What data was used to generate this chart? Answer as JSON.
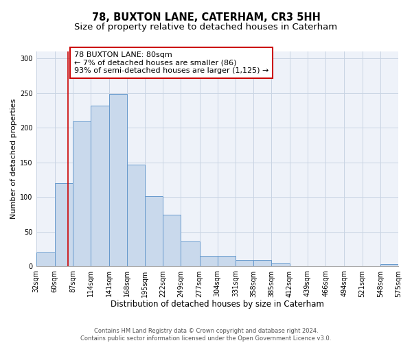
{
  "title": "78, BUXTON LANE, CATERHAM, CR3 5HH",
  "subtitle": "Size of property relative to detached houses in Caterham",
  "xlabel": "Distribution of detached houses by size in Caterham",
  "ylabel": "Number of detached properties",
  "bar_color": "#c9d9ec",
  "bar_edge_color": "#6699cc",
  "grid_color": "#c8d4e3",
  "background_color": "#eef2f9",
  "annotation_box_color": "#cc0000",
  "vline_color": "#cc0000",
  "vline_x": 80,
  "annotation_text": "78 BUXTON LANE: 80sqm\n← 7% of detached houses are smaller (86)\n93% of semi-detached houses are larger (1,125) →",
  "bin_edges": [
    32,
    60,
    87,
    114,
    141,
    168,
    195,
    222,
    249,
    277,
    304,
    331,
    358,
    385,
    412,
    439,
    466,
    494,
    521,
    548,
    575
  ],
  "bar_heights": [
    20,
    120,
    209,
    232,
    249,
    147,
    101,
    75,
    36,
    15,
    15,
    9,
    9,
    4,
    0,
    0,
    0,
    0,
    0,
    3
  ],
  "ylim": [
    0,
    310
  ],
  "yticks": [
    0,
    50,
    100,
    150,
    200,
    250,
    300
  ],
  "footer_text": "Contains HM Land Registry data © Crown copyright and database right 2024.\nContains public sector information licensed under the Open Government Licence v3.0.",
  "title_fontsize": 10.5,
  "subtitle_fontsize": 9.5,
  "xlabel_fontsize": 8.5,
  "ylabel_fontsize": 8,
  "tick_fontsize": 7,
  "footer_fontsize": 6,
  "annotation_fontsize": 8
}
